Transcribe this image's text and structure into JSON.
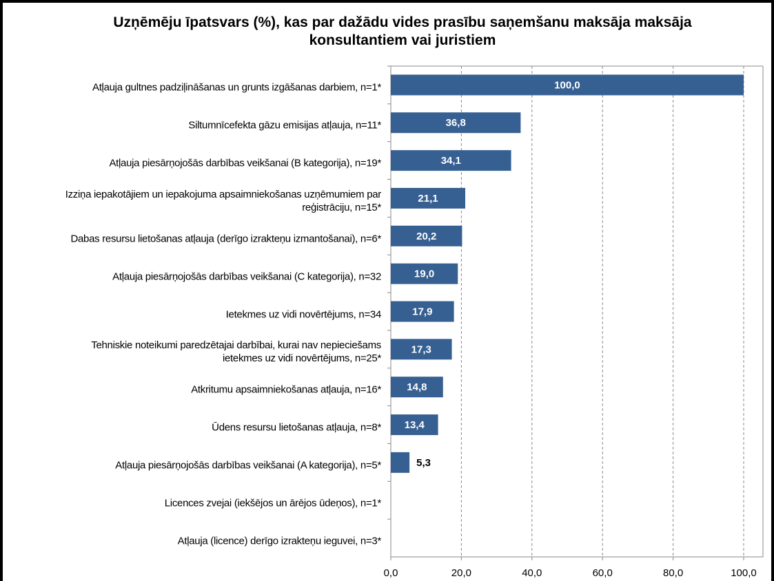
{
  "chart_data": {
    "type": "bar",
    "orientation": "horizontal",
    "title": "Uzņēmēju īpatsvars (%), kas par dažādu vides prasību saņemšanu maksāja maksāja konsultantiem vai juristiem",
    "categories": [
      "Atļauja gultnes padziļināšanas un grunts izgāšanas darbiem, n=1*",
      "Siltumnīcefekta gāzu emisijas atļauja, n=11*",
      "Atļauja piesārņojošās darbības veikšanai (B kategorija), n=19*",
      "Izziņa iepakotājiem un iepakojuma apsaimniekošanas uzņēmumiem par reģistrāciju, n=15*",
      "Dabas resursu lietošanas atļauja (derīgo izrakteņu izmantošanai), n=6*",
      "Atļauja piesārņojošās darbības veikšanai (C kategorija), n=32",
      "Ietekmes uz vidi novērtējums, n=34",
      "Tehniskie noteikumi paredzētajai darbībai, kurai nav nepieciešams ietekmes uz vidi novērtējums, n=25*",
      "Atkritumu apsaimniekošanas atļauja, n=16*",
      "Ūdens resursu lietošanas atļauja, n=8*",
      "Atļauja piesārņojošās darbības veikšanai (A kategorija), n=5*",
      "Licences zvejai (iekšējos un ārējos ūdeņos), n=1*",
      "Atļauja (licence) derīgo izrakteņu ieguvei, n=3*"
    ],
    "values": [
      100.0,
      36.8,
      34.1,
      21.1,
      20.2,
      19.0,
      17.9,
      17.3,
      14.8,
      13.4,
      5.3,
      null,
      null
    ],
    "value_labels": [
      "100,0",
      "36,8",
      "34,1",
      "21,1",
      "20,2",
      "19,0",
      "17,9",
      "17,3",
      "14,8",
      "13,4",
      "5,3",
      null,
      null
    ],
    "color": "#376092",
    "xlim": [
      0,
      100
    ],
    "xticks": [
      {
        "value": 0,
        "label": "0,0"
      },
      {
        "value": 20,
        "label": "20,0"
      },
      {
        "value": 40,
        "label": "40,0"
      },
      {
        "value": 60,
        "label": "60,0"
      },
      {
        "value": 80,
        "label": "80,0"
      },
      {
        "value": 100,
        "label": "100,0"
      }
    ],
    "grid": true
  }
}
